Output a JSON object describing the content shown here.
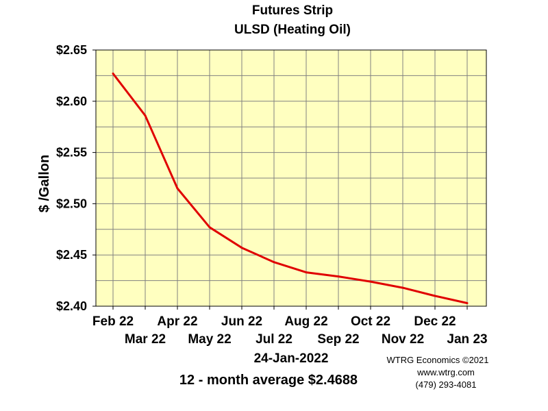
{
  "chart_data": {
    "type": "line",
    "title": "Futures Strip",
    "subtitle": "ULSD (Heating Oil)",
    "xlabel": "",
    "ylabel": "$ /Gallon",
    "categories": [
      "Feb 22",
      "Mar 22",
      "Apr 22",
      "May 22",
      "Jun 22",
      "Jul 22",
      "Aug 22",
      "Sep 22",
      "Oct 22",
      "Nov 22",
      "Dec 22",
      "Jan 23"
    ],
    "series": [
      {
        "values": [
          2.627,
          2.586,
          2.515,
          2.477,
          2.457,
          2.443,
          2.433,
          2.429,
          2.424,
          2.418,
          2.41,
          2.403
        ]
      }
    ],
    "ylim": [
      2.4,
      2.65
    ],
    "yticks": [
      "$2.40",
      "$2.45",
      "$2.50",
      "$2.55",
      "$2.60",
      "$2.65"
    ],
    "grid": true,
    "line_color": "#e00000",
    "plot_background": "#ffffc0",
    "grid_color": "#808080"
  },
  "date_label": "24-Jan-2022",
  "average_label": "12 - month average $2.4688",
  "credits": {
    "line1": "WTRG Economics ©2021",
    "line2": "www.wtrg.com",
    "line3": "(479) 293-4081"
  }
}
